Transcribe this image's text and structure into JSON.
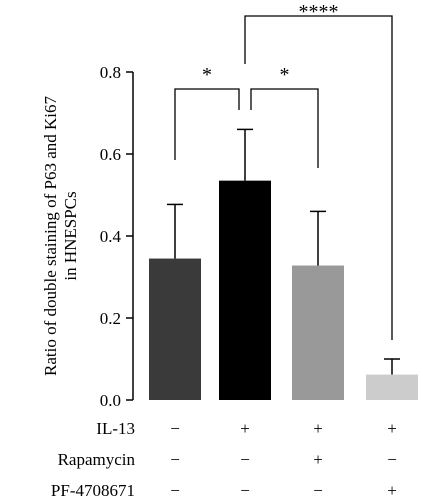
{
  "chart_data": {
    "type": "bar",
    "ylabel_lines": [
      "Ratio of double staining of P63 and Ki67",
      "in HNESPCs"
    ],
    "ylim": [
      0,
      0.8
    ],
    "yticks": [
      "0.0",
      "0.2",
      "0.4",
      "0.6",
      "0.8"
    ],
    "ytick_values": [
      0,
      0.2,
      0.4,
      0.6,
      0.8
    ],
    "grid": false,
    "legend": "none",
    "values": [
      0.345,
      0.535,
      0.328,
      0.062
    ],
    "errors": [
      0.132,
      0.125,
      0.132,
      0.038
    ],
    "colors": [
      "#3a3a3a",
      "#000000",
      "#999999",
      "#cccccc"
    ],
    "conditions": [
      {
        "name": "IL-13",
        "signs": [
          "−",
          "+",
          "+",
          "+"
        ]
      },
      {
        "name": "Rapamycin",
        "signs": [
          "−",
          "−",
          "+",
          "−"
        ]
      },
      {
        "name": "PF-4708671",
        "signs": [
          "−",
          "−",
          "−",
          "+"
        ]
      }
    ],
    "significance": [
      {
        "from": 0,
        "to": 1,
        "label": "*"
      },
      {
        "from": 1,
        "to": 2,
        "label": "*"
      },
      {
        "from": 1,
        "to": 3,
        "label": "****"
      }
    ]
  }
}
